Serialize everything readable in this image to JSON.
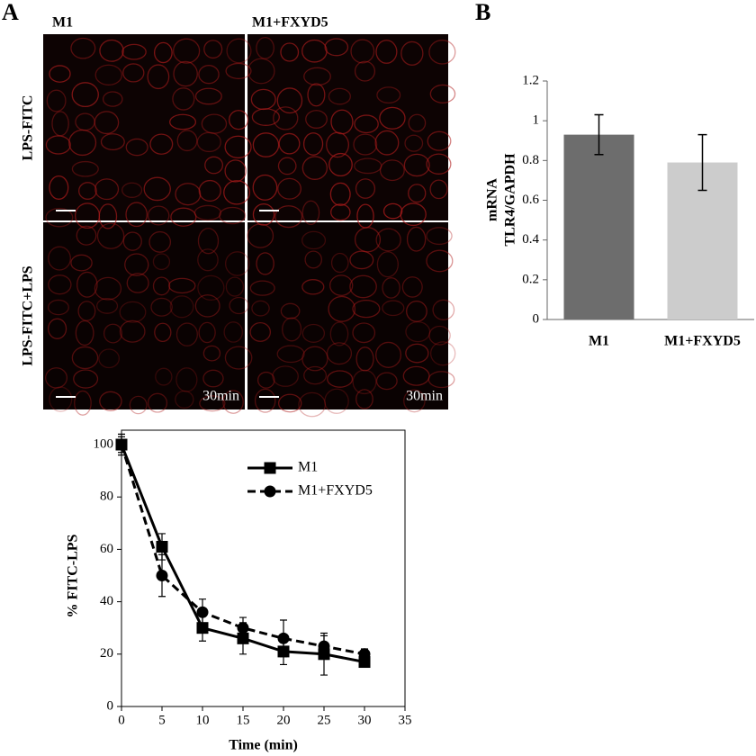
{
  "panels": {
    "a": "A",
    "b": "B"
  },
  "micrographs": {
    "columns": [
      "M1",
      "M1+FXYD5"
    ],
    "rows": [
      "LPS-FITC",
      "LPS-FITC+LPS"
    ],
    "time_labels": [
      "30min",
      "30min"
    ]
  },
  "chart_data": [
    {
      "type": "line",
      "xlabel": "Time (min)",
      "ylabel": "% FITC-LPS",
      "x": [
        0,
        5,
        10,
        15,
        20,
        25,
        30
      ],
      "series": [
        {
          "name": "M1",
          "color": "#000000",
          "line_style": "solid",
          "marker": "square",
          "values": [
            100,
            61,
            30,
            26,
            21,
            20,
            17
          ],
          "errors": [
            4,
            5,
            5,
            6,
            5,
            8,
            2
          ]
        },
        {
          "name": "M1+FXYD5",
          "color": "#000000",
          "line_style": "dashed",
          "marker": "circle",
          "values": [
            100,
            50,
            36,
            30,
            26,
            23,
            20
          ],
          "errors": [
            3,
            8,
            5,
            4,
            7,
            4,
            2
          ]
        }
      ],
      "xlim": [
        0,
        35
      ],
      "xticks": [
        0,
        5,
        10,
        15,
        20,
        25,
        30,
        35
      ],
      "ylim": [
        0,
        100
      ],
      "yticks": [
        0,
        20,
        40,
        60,
        80,
        100
      ],
      "legend": "upper right"
    },
    {
      "type": "bar",
      "ylabel": [
        "mRNA",
        "TLR4/GAPDH"
      ],
      "categories": [
        "M1",
        "M1+FXYD5"
      ],
      "values": [
        0.93,
        0.79
      ],
      "errors": [
        0.1,
        0.14
      ],
      "colors": [
        "#6d6d6d",
        "#cccccc"
      ],
      "ylim": [
        0,
        1.2
      ],
      "yticks": [
        0,
        0.2,
        0.4,
        0.6,
        0.8,
        1,
        1.2
      ]
    }
  ]
}
